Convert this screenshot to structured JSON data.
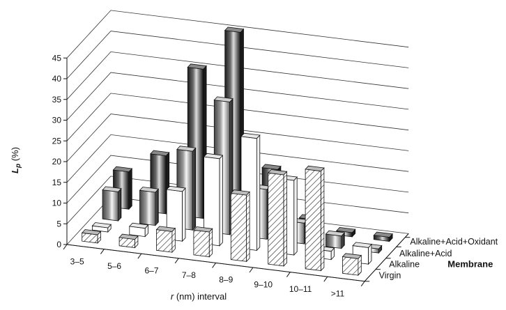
{
  "chart_data": {
    "type": "bar3d",
    "title": "",
    "xlabel_var": "r",
    "xlabel_rest": " (nm) interval",
    "ylabel_main": "L",
    "ylabel_sub": "p",
    "ylabel_unit": " (%)",
    "depth_axis_label": "Membrane",
    "ylim": [
      0,
      45
    ],
    "yticks": [
      "0",
      "5",
      "10",
      "15",
      "20",
      "25",
      "30",
      "35",
      "40",
      "45"
    ],
    "categories": [
      "3–5",
      "5–6",
      "6–7",
      "7–8",
      "8–9",
      "9–10",
      "10–11",
      ">11"
    ],
    "series": [
      {
        "name": "Virgin",
        "values": [
          2,
          2,
          5,
          6,
          16,
          22,
          24,
          4
        ]
      },
      {
        "name": "Alkaline",
        "values": [
          1,
          2,
          12,
          21,
          27,
          18,
          2,
          4
        ]
      },
      {
        "name": "Alkaline+Acid",
        "values": [
          7,
          8,
          19,
          32,
          12,
          5,
          3,
          1
        ]
      },
      {
        "name": "Alkaline+Acid+Oxidant",
        "values": [
          9,
          14,
          36,
          46,
          14,
          3,
          1,
          1
        ]
      }
    ],
    "grid": true,
    "legend": "depth-axis-right"
  }
}
